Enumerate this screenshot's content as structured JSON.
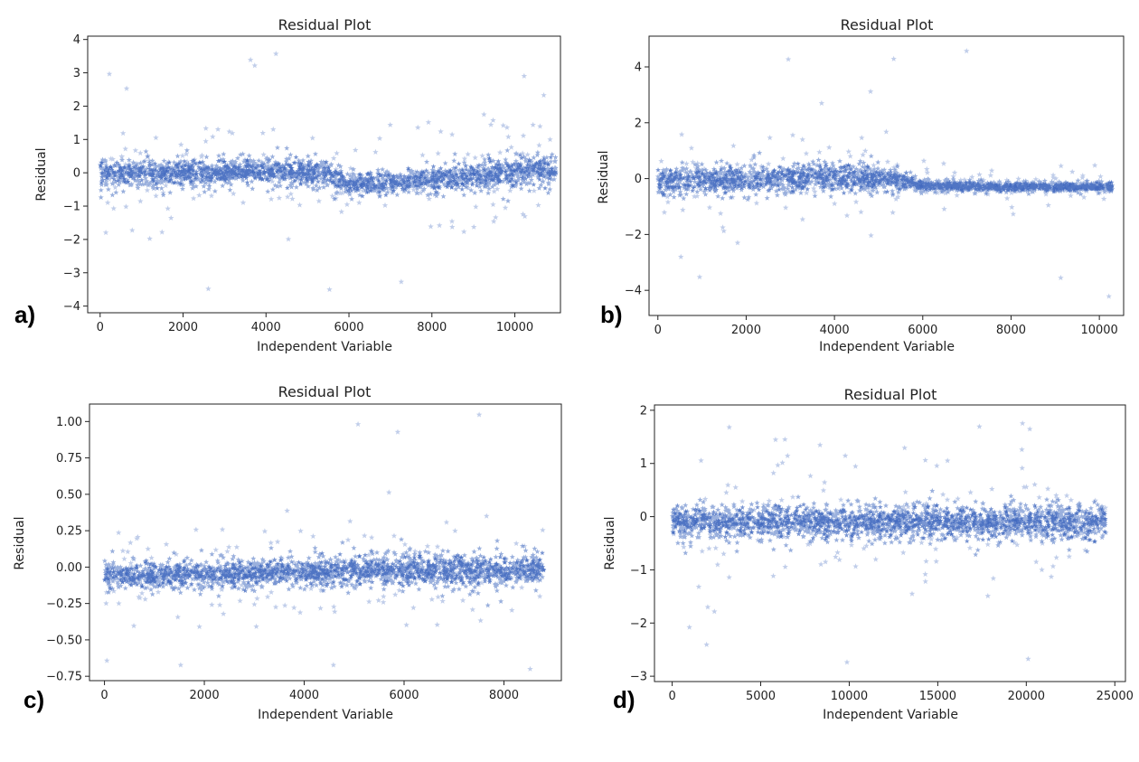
{
  "style": {
    "marker_color": "#1f4fb4",
    "marker": "star-icon"
  },
  "chart_data": [
    {
      "id": "a",
      "panel_label": "a)",
      "type": "scatter",
      "title": "Residual Plot",
      "xlabel": "Independent Variable",
      "ylabel": "Residual",
      "xlim": [
        -300,
        11100
      ],
      "ylim": [
        -4.2,
        4.1
      ],
      "xticks": [
        0,
        2000,
        4000,
        6000,
        8000,
        10000
      ],
      "yticks": [
        -4,
        -3,
        -2,
        -1,
        0,
        1,
        2,
        3,
        4
      ],
      "xtick_labels": [
        "0",
        "2000",
        "4000",
        "6000",
        "8000",
        "10000"
      ],
      "ytick_labels": [
        "−4",
        "−3",
        "−2",
        "−1",
        "0",
        "1",
        "2",
        "3",
        "4"
      ],
      "series": [
        {
          "x_range": [
            0,
            11000
          ],
          "n_points": 11000,
          "band": [
            [
              0,
              -0.05,
              0.55
            ],
            [
              2000,
              0.0,
              0.5
            ],
            [
              4000,
              0.05,
              0.5
            ],
            [
              5500,
              0.0,
              0.5
            ],
            [
              6000,
              -0.35,
              0.45
            ],
            [
              7000,
              -0.3,
              0.45
            ],
            [
              8000,
              -0.2,
              0.5
            ],
            [
              9000,
              -0.1,
              0.55
            ],
            [
              10000,
              0.05,
              0.6
            ],
            [
              11000,
              0.1,
              0.65
            ]
          ],
          "y_extremes": [
            -3.9,
            3.7
          ]
        }
      ]
    },
    {
      "id": "b",
      "panel_label": "b)",
      "type": "scatter",
      "title": "Residual Plot",
      "xlabel": "Independent Variable",
      "ylabel": "Residual",
      "xlim": [
        -200,
        10550
      ],
      "ylim": [
        -4.9,
        5.1
      ],
      "xticks": [
        0,
        2000,
        4000,
        6000,
        8000,
        10000
      ],
      "yticks": [
        -4,
        -2,
        0,
        2,
        4
      ],
      "xtick_labels": [
        "0",
        "2000",
        "4000",
        "6000",
        "8000",
        "10000"
      ],
      "ytick_labels": [
        "−4",
        "−2",
        "0",
        "2",
        "4"
      ],
      "series": [
        {
          "x_range": [
            0,
            10300
          ],
          "n_points": 10300,
          "band": [
            [
              0,
              -0.05,
              0.6
            ],
            [
              2000,
              -0.05,
              0.65
            ],
            [
              4500,
              0.05,
              0.65
            ],
            [
              5200,
              0.0,
              0.5
            ],
            [
              6000,
              -0.25,
              0.25
            ],
            [
              8000,
              -0.3,
              0.2
            ],
            [
              10300,
              -0.3,
              0.2
            ]
          ],
          "y_extremes": [
            -4.4,
            4.6
          ]
        }
      ]
    },
    {
      "id": "c",
      "panel_label": "c)",
      "type": "scatter",
      "title": "Residual Plot",
      "xlabel": "Independent Variable",
      "ylabel": "Residual",
      "xlim": [
        -300,
        9150
      ],
      "ylim": [
        -0.78,
        1.12
      ],
      "xticks": [
        0,
        2000,
        4000,
        6000,
        8000
      ],
      "yticks": [
        -0.75,
        -0.5,
        -0.25,
        0.0,
        0.25,
        0.5,
        0.75,
        1.0
      ],
      "xtick_labels": [
        "0",
        "2000",
        "4000",
        "6000",
        "8000"
      ],
      "ytick_labels": [
        "−0.75",
        "−0.50",
        "−0.25",
        "0.00",
        "0.25",
        "0.50",
        "0.75",
        "1.00"
      ],
      "series": [
        {
          "x_range": [
            0,
            8800
          ],
          "n_points": 8800,
          "band": [
            [
              0,
              -0.06,
              0.12
            ],
            [
              2000,
              -0.05,
              0.12
            ],
            [
              4000,
              -0.03,
              0.12
            ],
            [
              6000,
              -0.02,
              0.14
            ],
            [
              8000,
              -0.02,
              0.15
            ],
            [
              8800,
              -0.02,
              0.16
            ]
          ],
          "y_extremes": [
            -0.7,
            1.06
          ]
        }
      ]
    },
    {
      "id": "d",
      "panel_label": "d)",
      "type": "scatter",
      "title": "Residual Plot",
      "xlabel": "Independent Variable",
      "ylabel": "Residual",
      "xlim": [
        -1000,
        25600
      ],
      "ylim": [
        -3.1,
        2.1
      ],
      "xticks": [
        0,
        5000,
        10000,
        15000,
        20000,
        25000
      ],
      "yticks": [
        -3,
        -2,
        -1,
        0,
        1,
        2
      ],
      "xtick_labels": [
        "0",
        "5000",
        "10000",
        "15000",
        "20000",
        "25000"
      ],
      "ytick_labels": [
        "−3",
        "−2",
        "−1",
        "0",
        "1",
        "2"
      ],
      "series": [
        {
          "x_range": [
            0,
            24500
          ],
          "n_points": 24500,
          "band": [
            [
              0,
              -0.1,
              0.4
            ],
            [
              5000,
              -0.1,
              0.4
            ],
            [
              10000,
              -0.1,
              0.4
            ],
            [
              15000,
              -0.1,
              0.4
            ],
            [
              20000,
              -0.1,
              0.4
            ],
            [
              24500,
              -0.1,
              0.4
            ]
          ],
          "y_extremes": [
            -2.95,
            1.85
          ]
        }
      ]
    }
  ]
}
